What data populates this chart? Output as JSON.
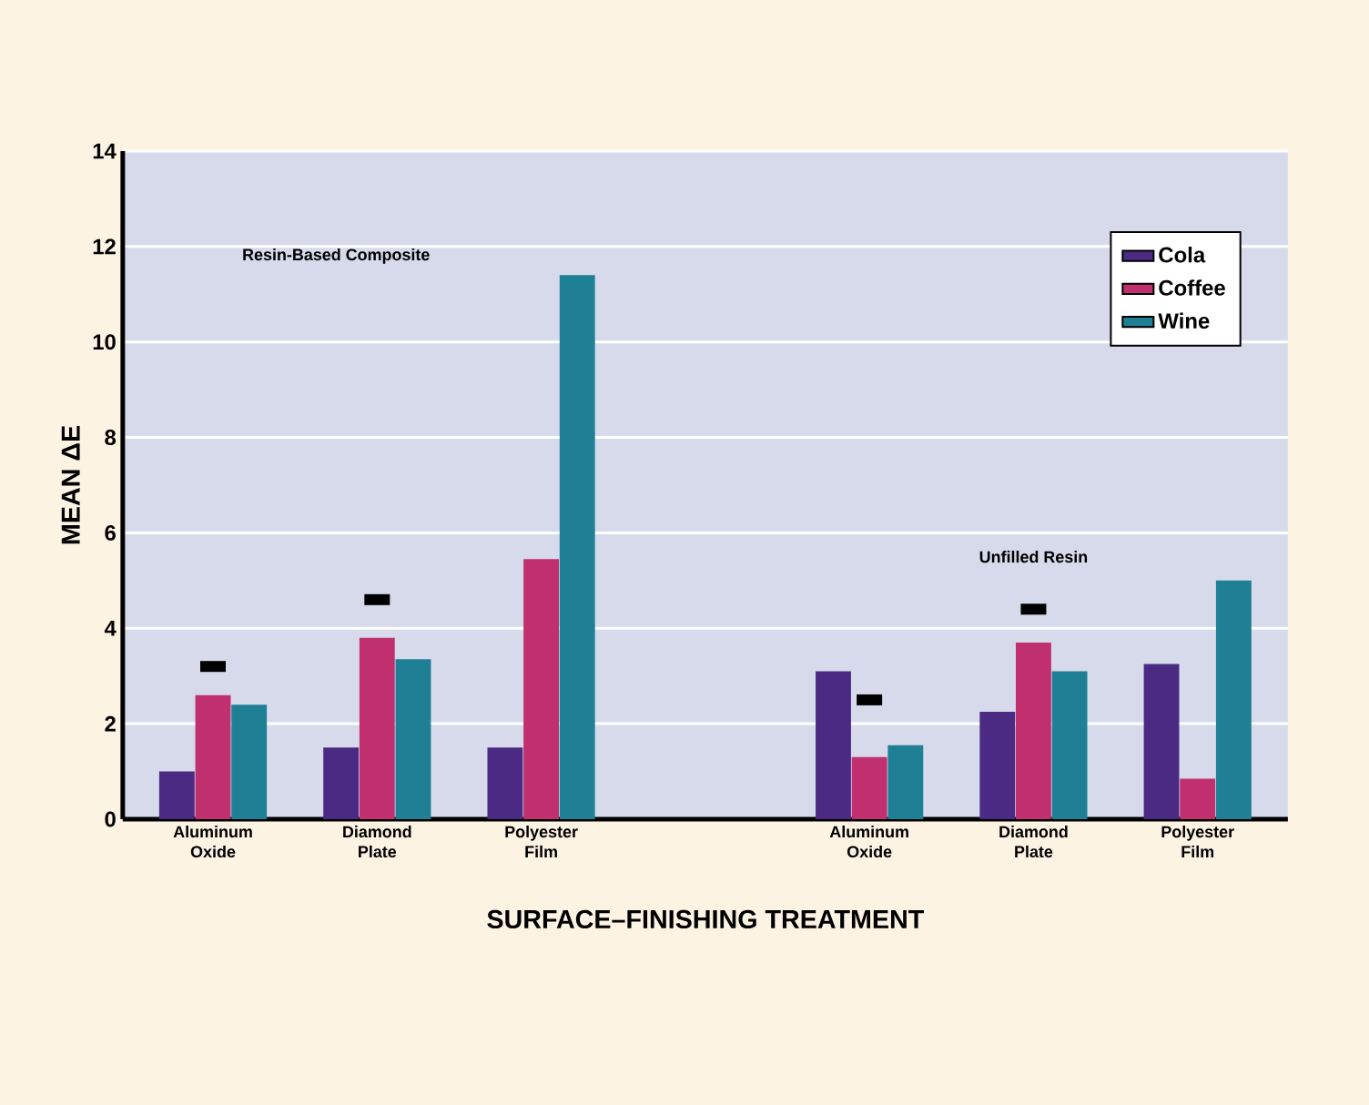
{
  "chart_data": {
    "type": "bar",
    "categories": [
      "Aluminum Oxide",
      "Diamond Plate",
      "Polyester Film",
      null,
      "Aluminum Oxide",
      "Diamond Plate",
      "Polyester Film"
    ],
    "series": [
      {
        "name": "Cola",
        "color": "#4b2a84",
        "values": [
          1.0,
          1.5,
          1.5,
          null,
          3.1,
          2.25,
          3.25
        ]
      },
      {
        "name": "Coffee",
        "color": "#c0306e",
        "values": [
          2.6,
          3.8,
          5.45,
          null,
          1.3,
          3.7,
          0.85
        ]
      },
      {
        "name": "Wine",
        "color": "#1f7f94",
        "values": [
          2.4,
          3.35,
          11.4,
          null,
          1.55,
          3.1,
          5.0
        ]
      },
      {
        "type": "scatter",
        "color": "#000000",
        "values": [
          3.2,
          4.6,
          null,
          null,
          2.5,
          4.4,
          null
        ]
      }
    ],
    "xlabel": "SURFACE–FINISHING TREATMENT",
    "ylabel": "MEAN ΔE",
    "ylim": [
      0,
      14
    ],
    "yticks": [
      0,
      2,
      4,
      6,
      8,
      10,
      12,
      14
    ],
    "grid": "y",
    "legend": "top right",
    "annotations": [
      "Resin-Based Composite",
      "Unfilled Resin"
    ]
  }
}
